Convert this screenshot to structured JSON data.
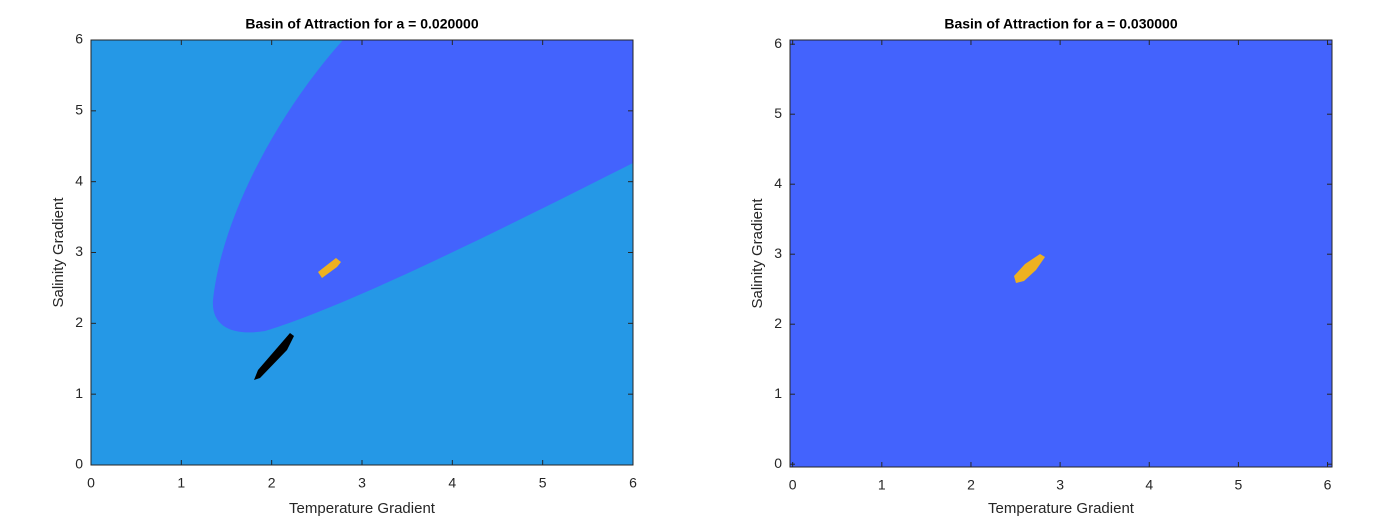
{
  "chart_data": [
    {
      "type": "image",
      "title": "Basin of Attraction for a = 0.020000",
      "xlabel": "Temperature Gradient",
      "ylabel": "Salinity Gradient",
      "xlim": [
        0,
        6
      ],
      "ylim": [
        0,
        6
      ],
      "xticks": [
        0,
        1,
        2,
        3,
        4,
        5,
        6
      ],
      "yticks": [
        0,
        1,
        2,
        3,
        4,
        5,
        6
      ]
    },
    {
      "type": "image",
      "title": "Basin of Attraction for a = 0.030000",
      "xlabel": "Temperature Gradient",
      "ylabel": "Salinity Gradient",
      "xlim": [
        -0.03,
        6.05
      ],
      "ylim": [
        -0.04,
        6.06
      ],
      "xticks": [
        0,
        1,
        2,
        3,
        4,
        5,
        6
      ],
      "yticks": [
        0,
        1,
        2,
        3,
        4,
        5,
        6
      ]
    }
  ]
}
